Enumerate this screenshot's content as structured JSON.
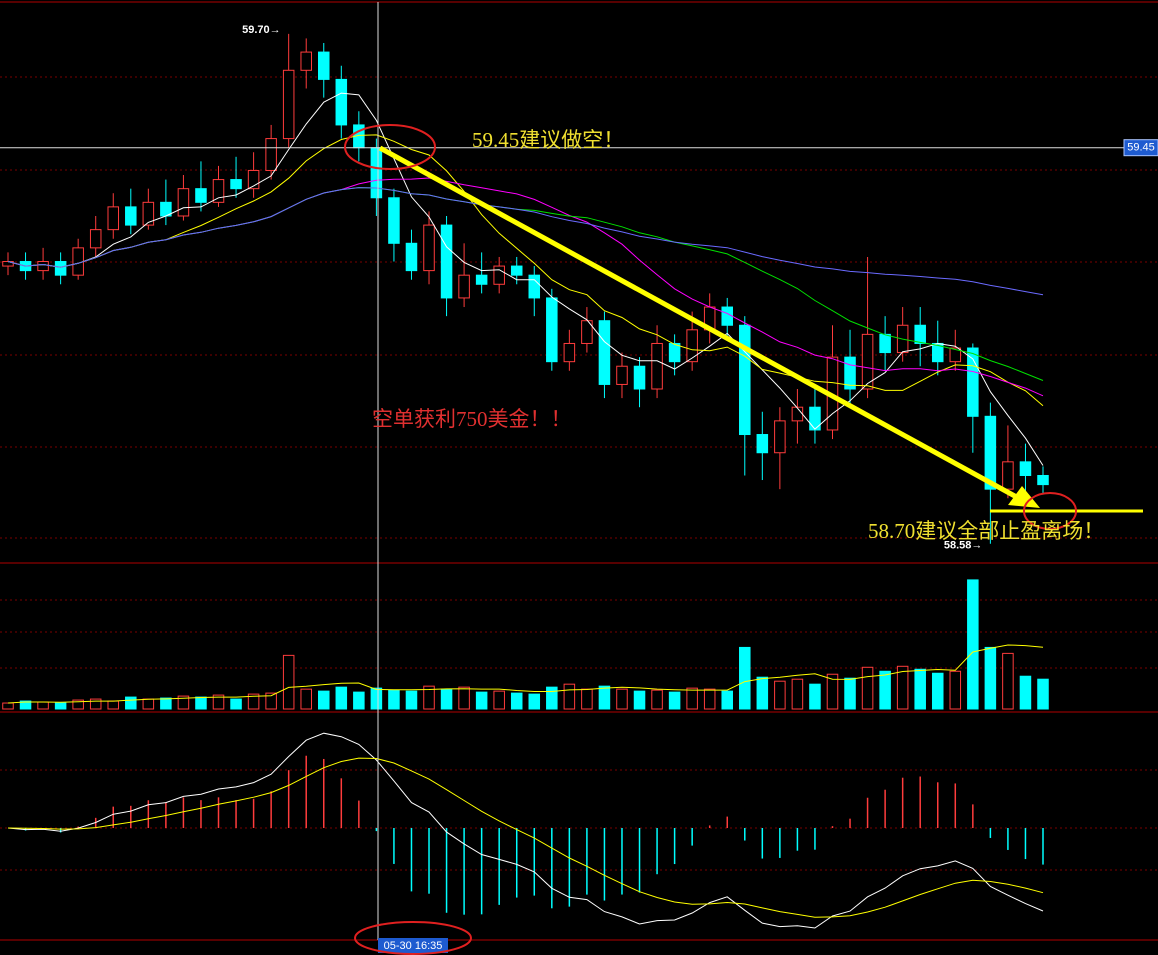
{
  "chart_data": {
    "type": "candlestick",
    "ylim": [
      58.54,
      59.77
    ],
    "up_color": "#ff3c3c",
    "down_color": "#00ffff",
    "open": [
      59.19,
      59.2,
      59.18,
      59.2,
      59.17,
      59.23,
      59.27,
      59.32,
      59.28,
      59.33,
      59.3,
      59.36,
      59.33,
      59.38,
      59.36,
      59.4,
      59.47,
      59.62,
      59.66,
      59.6,
      59.5,
      59.45,
      59.34,
      59.24,
      59.18,
      59.28,
      59.12,
      59.17,
      59.15,
      59.19,
      59.17,
      59.12,
      58.98,
      59.02,
      59.07,
      58.93,
      58.97,
      58.92,
      59.02,
      58.98,
      59.05,
      59.1,
      59.06,
      58.82,
      58.78,
      58.85,
      58.88,
      58.83,
      58.99,
      58.92,
      59.04,
      59.0,
      59.06,
      59.02,
      58.98,
      59.01,
      58.86,
      58.7,
      58.76,
      58.73
    ],
    "high": [
      59.22,
      59.22,
      59.23,
      59.22,
      59.25,
      59.3,
      59.35,
      59.36,
      59.36,
      59.38,
      59.39,
      59.42,
      59.41,
      59.43,
      59.44,
      59.5,
      59.7,
      59.69,
      59.68,
      59.63,
      59.53,
      59.47,
      59.36,
      59.27,
      59.31,
      59.3,
      59.24,
      59.22,
      59.21,
      59.21,
      59.19,
      59.14,
      59.05,
      59.1,
      59.09,
      59.0,
      58.99,
      59.06,
      59.04,
      59.09,
      59.13,
      59.12,
      59.08,
      58.87,
      58.88,
      58.92,
      58.92,
      59.06,
      59.05,
      59.21,
      59.08,
      59.1,
      59.1,
      59.07,
      59.05,
      59.02,
      58.89,
      58.84,
      58.8,
      58.75
    ],
    "low": [
      59.17,
      59.16,
      59.16,
      59.15,
      59.16,
      59.21,
      59.25,
      59.26,
      59.27,
      59.28,
      59.29,
      59.31,
      59.32,
      59.34,
      59.34,
      59.38,
      59.45,
      59.58,
      59.56,
      59.47,
      59.42,
      59.3,
      59.2,
      59.16,
      59.15,
      59.08,
      59.1,
      59.13,
      59.13,
      59.15,
      59.08,
      58.96,
      58.96,
      59.0,
      58.9,
      58.9,
      58.88,
      58.9,
      58.95,
      58.96,
      59.02,
      59.03,
      58.73,
      58.72,
      58.7,
      58.8,
      58.8,
      58.81,
      58.88,
      58.9,
      58.96,
      58.98,
      58.97,
      58.95,
      58.96,
      58.78,
      58.58,
      58.68,
      58.68,
      58.69
    ],
    "close": [
      59.2,
      59.18,
      59.2,
      59.17,
      59.23,
      59.27,
      59.32,
      59.28,
      59.33,
      59.3,
      59.36,
      59.33,
      59.38,
      59.36,
      59.4,
      59.47,
      59.62,
      59.66,
      59.6,
      59.5,
      59.45,
      59.34,
      59.24,
      59.18,
      59.28,
      59.12,
      59.17,
      59.15,
      59.19,
      59.17,
      59.12,
      58.98,
      59.02,
      59.07,
      58.93,
      58.97,
      58.92,
      59.02,
      58.98,
      59.05,
      59.1,
      59.06,
      58.82,
      58.78,
      58.85,
      58.88,
      58.83,
      58.99,
      58.92,
      59.04,
      59.0,
      59.06,
      59.02,
      58.98,
      59.01,
      58.86,
      58.7,
      58.76,
      58.73,
      58.71
    ],
    "volume": [
      60,
      80,
      70,
      60,
      90,
      100,
      80,
      120,
      100,
      110,
      130,
      120,
      140,
      100,
      150,
      160,
      540,
      200,
      180,
      220,
      170,
      210,
      190,
      180,
      230,
      200,
      220,
      170,
      180,
      160,
      150,
      220,
      250,
      200,
      230,
      200,
      180,
      190,
      170,
      210,
      200,
      180,
      620,
      320,
      280,
      300,
      250,
      350,
      310,
      420,
      380,
      430,
      400,
      360,
      380,
      1300,
      620,
      560,
      330,
      300
    ],
    "volume_lim": [
      0,
      1450
    ],
    "moving_averages": [
      {
        "period": 5,
        "color": "#ffffff"
      },
      {
        "period": 10,
        "color": "#ffff00"
      },
      {
        "period": 20,
        "color": "#ff00ff"
      },
      {
        "period": 30,
        "color": "#00e000"
      },
      {
        "period": 60,
        "color": "#6a6aff"
      }
    ],
    "high_label": "59.70→",
    "low_label": "58.58→",
    "crosshair_price": 59.45,
    "crosshair_time": "05-30 16:35",
    "annotations": [
      "59.45建议做空！",
      "空单获利750美金！！",
      "58.70建议全部止盈离场！"
    ]
  }
}
